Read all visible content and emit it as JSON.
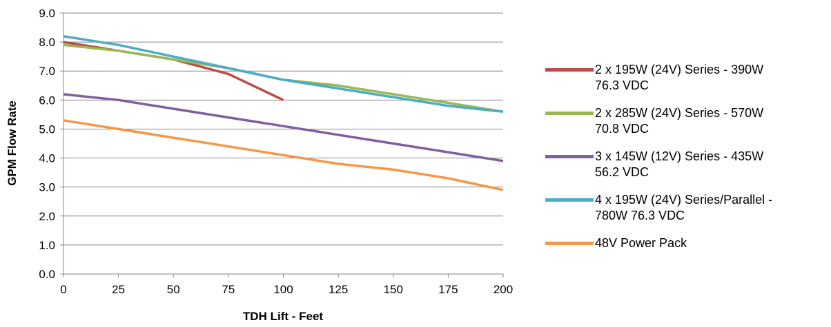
{
  "chart_data": {
    "type": "line",
    "xlabel": "TDH Lift - Feet",
    "ylabel": "GPM Flow Rate",
    "xlim": [
      0,
      200
    ],
    "ylim": [
      0,
      9
    ],
    "x_ticks": [
      "0",
      "25",
      "50",
      "75",
      "100",
      "125",
      "150",
      "175",
      "200"
    ],
    "y_ticks": [
      "0.0",
      "1.0",
      "2.0",
      "3.0",
      "4.0",
      "5.0",
      "6.0",
      "7.0",
      "8.0",
      "9.0"
    ],
    "grid": "horizontal",
    "legend_position": "right",
    "series": [
      {
        "name": "2 x 195W (24V) Series - 390W\n76.3 VDC",
        "color": "#be4b48",
        "x": [
          0,
          25,
          50,
          75,
          100
        ],
        "y": [
          8.0,
          7.7,
          7.4,
          6.9,
          6.0
        ]
      },
      {
        "name": "2 x 285W (24V) Series - 570W\n70.8 VDC",
        "color": "#98b954",
        "x": [
          0,
          25,
          50,
          75,
          100,
          125,
          150,
          175,
          200
        ],
        "y": [
          7.9,
          7.7,
          7.4,
          7.1,
          6.7,
          6.5,
          6.2,
          5.9,
          5.6
        ]
      },
      {
        "name": "3 x 145W (12V) Series - 435W\n56.2 VDC",
        "color": "#7d60a0",
        "x": [
          0,
          25,
          50,
          75,
          100,
          125,
          150,
          175,
          200
        ],
        "y": [
          6.2,
          6.0,
          5.7,
          5.4,
          5.1,
          4.8,
          4.5,
          4.2,
          3.9
        ]
      },
      {
        "name": "4 x 195W (24V) Series/Parallel -\n780W 76.3 VDC",
        "color": "#4bacc6",
        "x": [
          0,
          25,
          50,
          75,
          100,
          125,
          150,
          175,
          200
        ],
        "y": [
          8.2,
          7.9,
          7.5,
          7.1,
          6.7,
          6.4,
          6.1,
          5.8,
          5.6
        ]
      },
      {
        "name": "48V Power Pack",
        "color": "#f79646",
        "x": [
          0,
          25,
          50,
          75,
          100,
          125,
          150,
          175,
          200
        ],
        "y": [
          5.3,
          5.0,
          4.7,
          4.4,
          4.1,
          3.8,
          3.6,
          3.3,
          2.9
        ]
      }
    ]
  }
}
